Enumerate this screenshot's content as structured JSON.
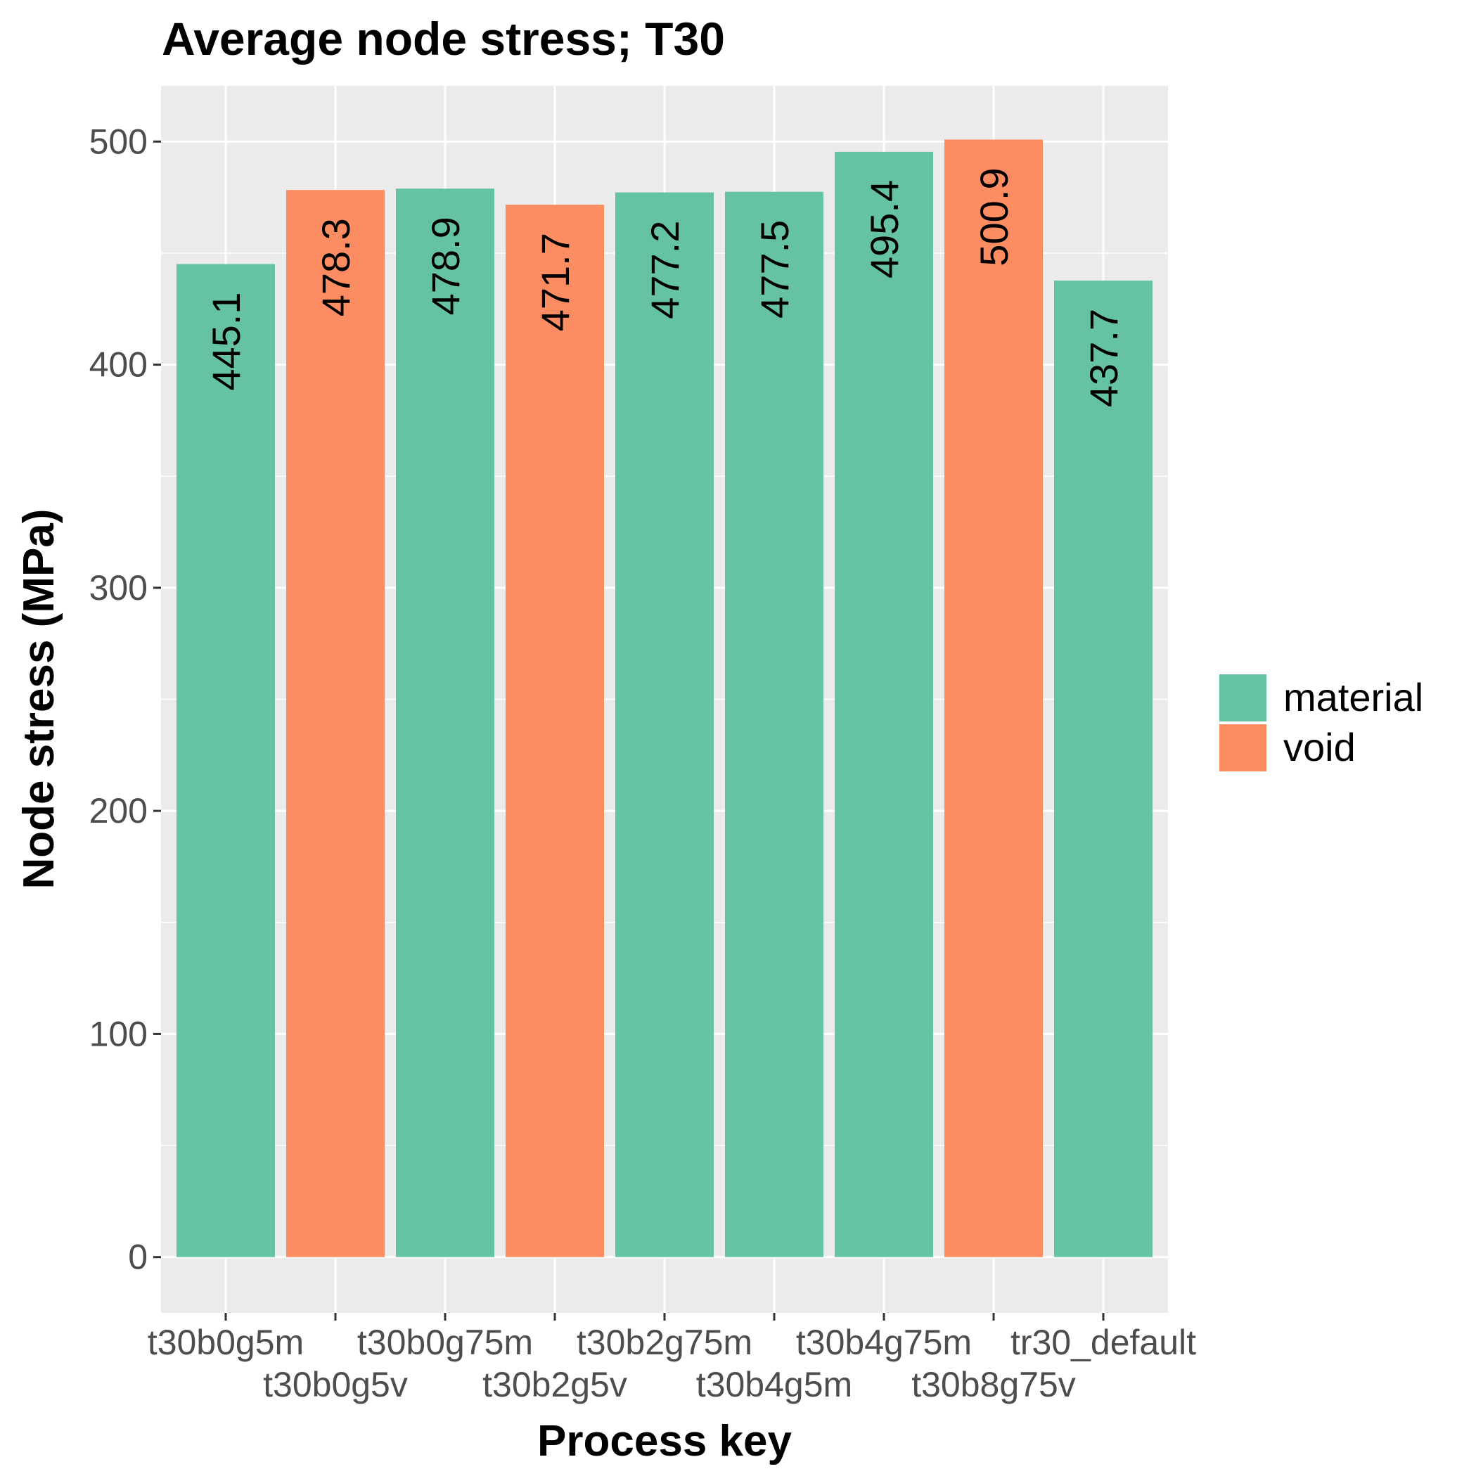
{
  "chart_data": {
    "type": "bar",
    "title": "Average node stress; T30",
    "xlabel": "Process key",
    "ylabel": "Node stress (MPa)",
    "ylim": [
      -25,
      525
    ],
    "yticks": [
      0,
      100,
      200,
      300,
      400,
      500
    ],
    "grid": true,
    "legend_position": "right",
    "categories": [
      "t30b0g5m",
      "t30b0g5v",
      "t30b0g75m",
      "t30b2g5v",
      "t30b2g75m",
      "t30b4g5m",
      "t30b4g75m",
      "t30b8g75v",
      "tr30_default"
    ],
    "values": [
      445.1,
      478.3,
      478.9,
      471.7,
      477.2,
      477.5,
      495.4,
      500.9,
      437.7
    ],
    "data_labels": [
      "445.1",
      "478.3",
      "478.9",
      "471.7",
      "477.2",
      "477.5",
      "495.4",
      "500.9",
      "437.7"
    ],
    "groups": [
      "material",
      "void",
      "material",
      "void",
      "material",
      "material",
      "material",
      "void",
      "material"
    ],
    "legend": [
      {
        "name": "material",
        "color": "#66c2a5"
      },
      {
        "name": "void",
        "color": "#fc8d62"
      }
    ]
  }
}
